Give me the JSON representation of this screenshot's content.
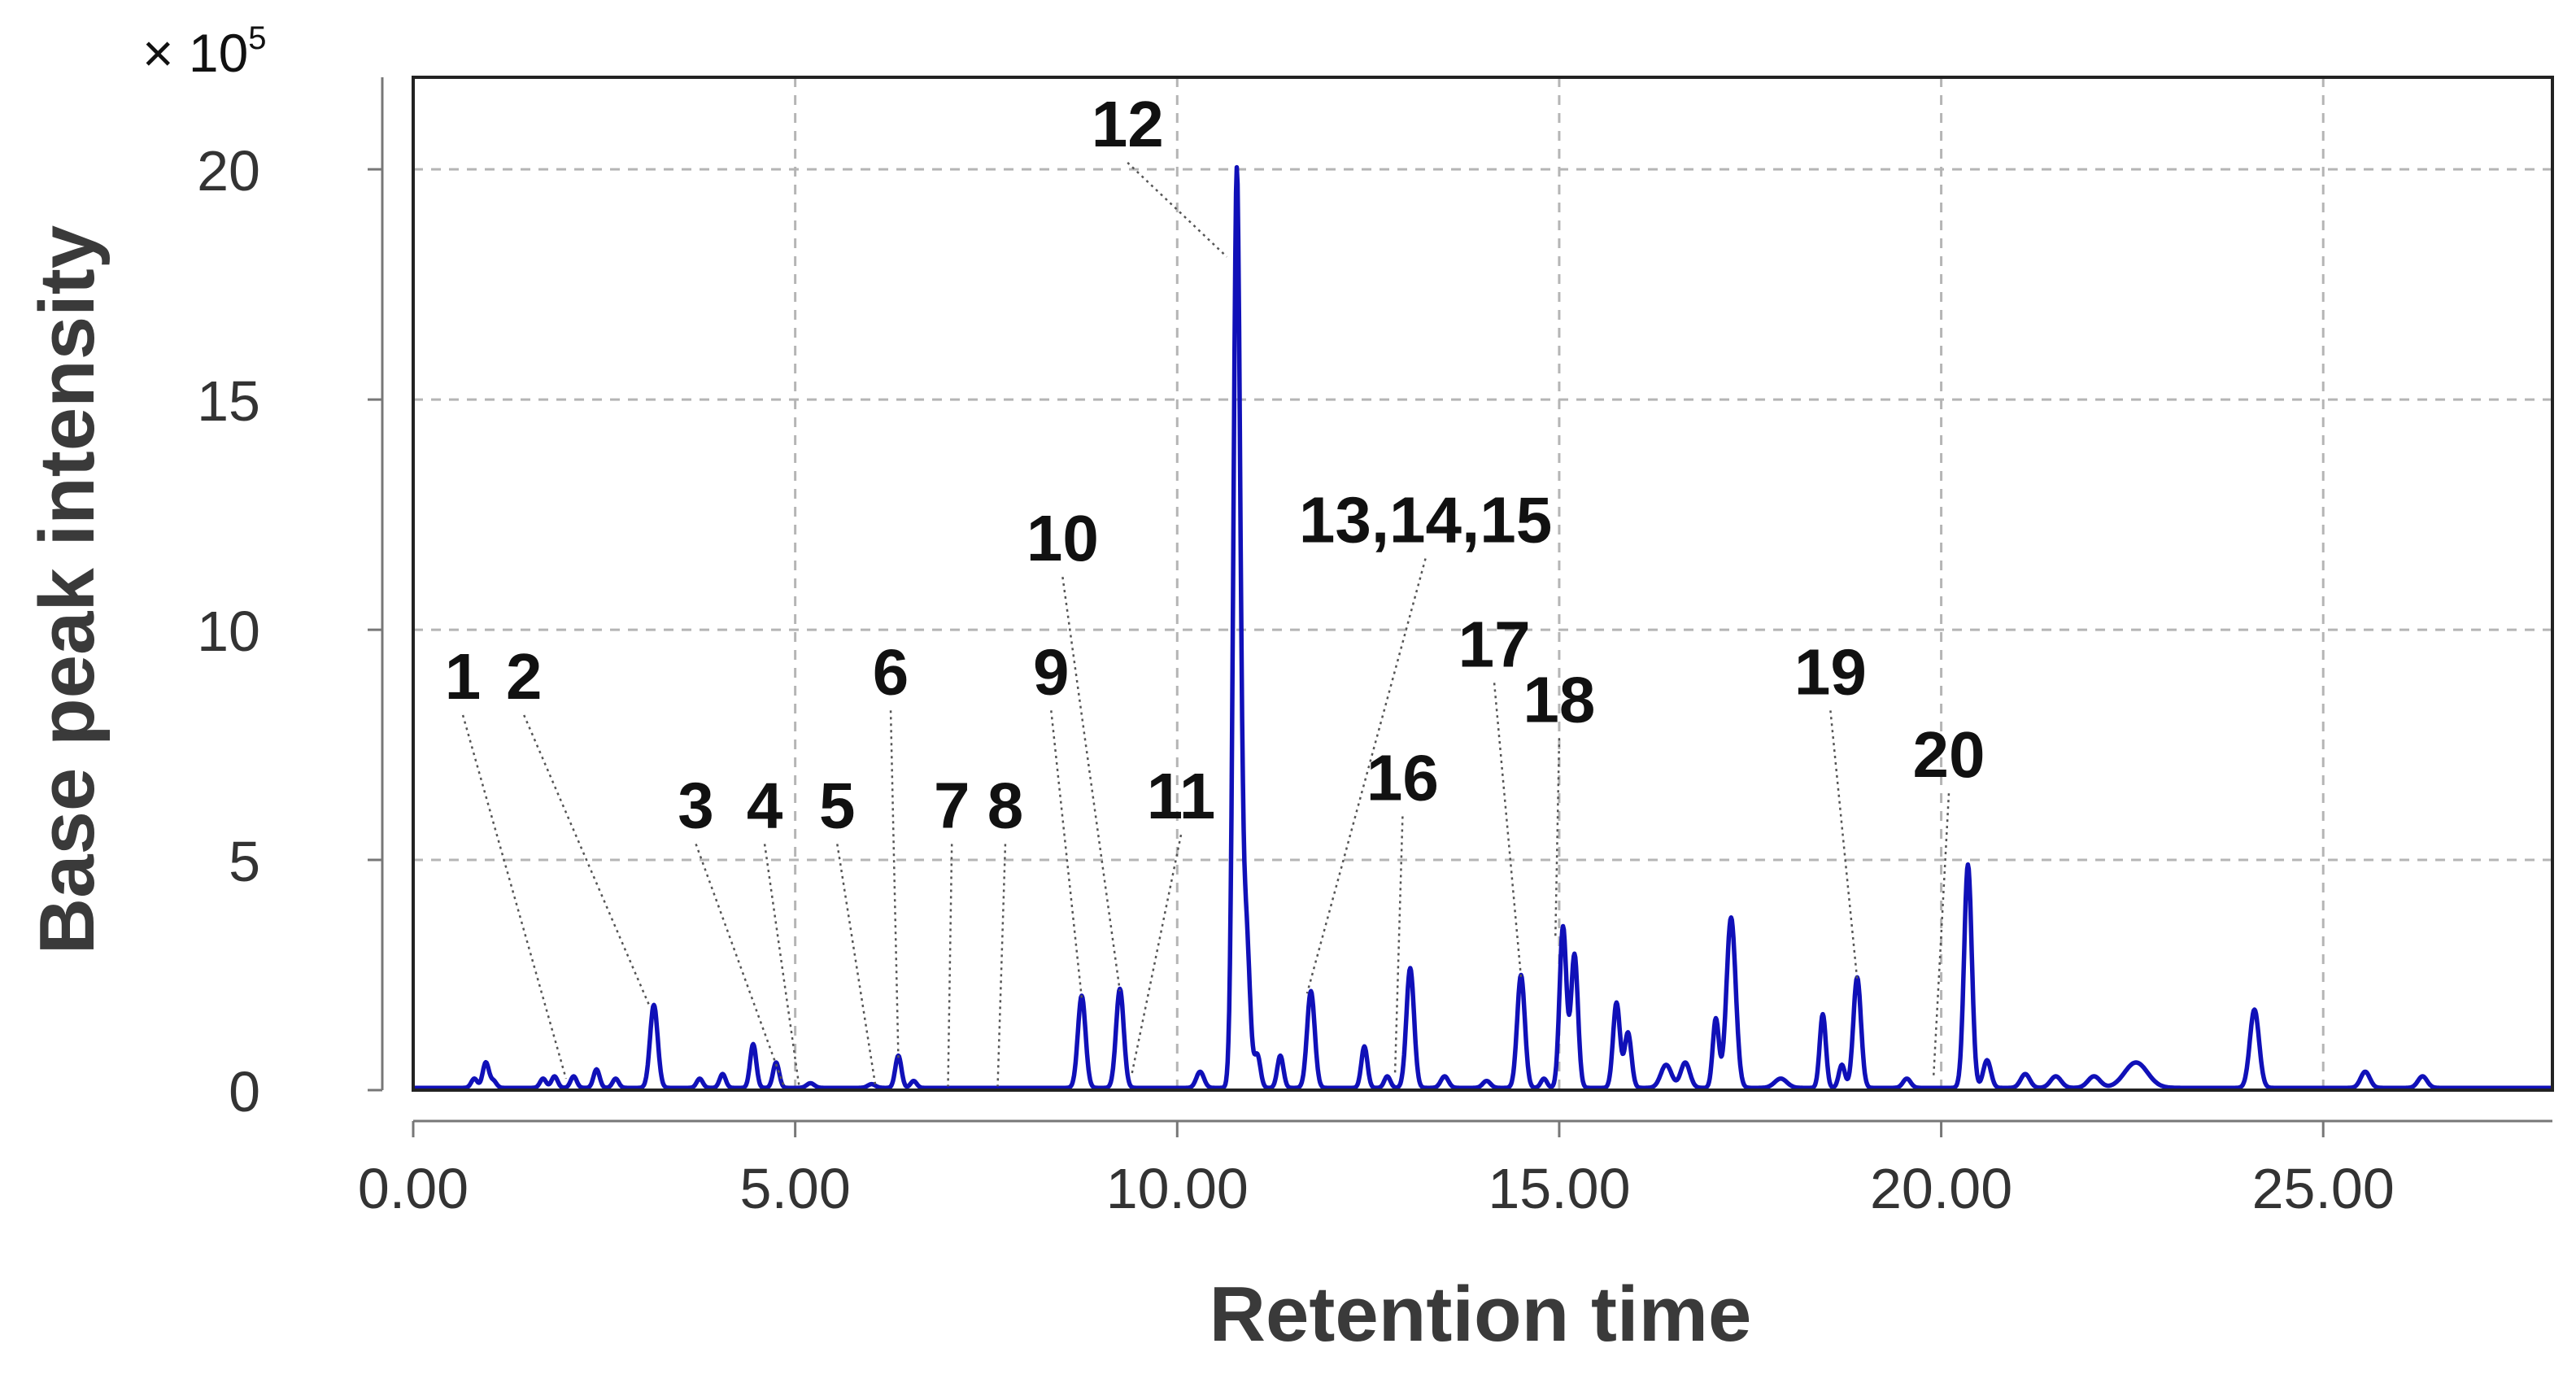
{
  "chart_data": {
    "type": "line",
    "title": "",
    "xlabel": "Retention time",
    "ylabel": "Base peak intensity",
    "y_multiplier_prefix": "× 10",
    "y_multiplier_exponent": "5",
    "xlim": [
      0,
      28
    ],
    "ylim": [
      0,
      22
    ],
    "x_ticks": [
      0,
      5,
      10,
      15,
      20,
      25
    ],
    "x_tick_labels": [
      "0.00",
      "5.00",
      "10.00",
      "15.00",
      "20.00",
      "25.00"
    ],
    "y_ticks": [
      0,
      5,
      10,
      15,
      20
    ],
    "y_tick_labels": [
      "0",
      "5",
      "10",
      "15",
      "20"
    ],
    "grid": true,
    "colors": {
      "trace": "#1010b8",
      "axis": "#222222",
      "grid": "#b5b5b5"
    },
    "series": [
      {
        "peaks": [
          {
            "x": 0.8,
            "y": 0.2,
            "w": 0.04
          },
          {
            "x": 0.95,
            "y": 0.55,
            "w": 0.04
          },
          {
            "x": 1.05,
            "y": 0.15,
            "w": 0.04
          },
          {
            "x": 1.7,
            "y": 0.2,
            "w": 0.04
          },
          {
            "x": 1.85,
            "y": 0.25,
            "w": 0.04
          },
          {
            "x": 2.1,
            "y": 0.25,
            "w": 0.04
          },
          {
            "x": 2.4,
            "y": 0.4,
            "w": 0.04
          },
          {
            "x": 2.65,
            "y": 0.2,
            "w": 0.04
          },
          {
            "x": 3.15,
            "y": 1.8,
            "w": 0.05
          },
          {
            "x": 3.75,
            "y": 0.2,
            "w": 0.04
          },
          {
            "x": 4.05,
            "y": 0.3,
            "w": 0.04
          },
          {
            "x": 4.45,
            "y": 0.95,
            "w": 0.04
          },
          {
            "x": 4.75,
            "y": 0.55,
            "w": 0.04
          },
          {
            "x": 5.2,
            "y": 0.1,
            "w": 0.05
          },
          {
            "x": 6.0,
            "y": 0.08,
            "w": 0.05
          },
          {
            "x": 6.35,
            "y": 0.7,
            "w": 0.04
          },
          {
            "x": 6.55,
            "y": 0.15,
            "w": 0.04
          },
          {
            "x": 8.75,
            "y": 2.0,
            "w": 0.05
          },
          {
            "x": 9.25,
            "y": 2.15,
            "w": 0.05
          },
          {
            "x": 10.3,
            "y": 0.35,
            "w": 0.05
          },
          {
            "x": 10.78,
            "y": 19.8,
            "w": 0.045
          },
          {
            "x": 10.9,
            "y": 3.5,
            "w": 0.05
          },
          {
            "x": 11.05,
            "y": 0.7,
            "w": 0.04
          },
          {
            "x": 11.35,
            "y": 0.7,
            "w": 0.04
          },
          {
            "x": 11.75,
            "y": 2.1,
            "w": 0.05
          },
          {
            "x": 12.45,
            "y": 0.9,
            "w": 0.04
          },
          {
            "x": 12.75,
            "y": 0.25,
            "w": 0.04
          },
          {
            "x": 13.05,
            "y": 2.6,
            "w": 0.05
          },
          {
            "x": 13.5,
            "y": 0.25,
            "w": 0.05
          },
          {
            "x": 14.05,
            "y": 0.15,
            "w": 0.05
          },
          {
            "x": 14.5,
            "y": 2.45,
            "w": 0.05
          },
          {
            "x": 14.8,
            "y": 0.2,
            "w": 0.04
          },
          {
            "x": 15.05,
            "y": 3.5,
            "w": 0.045
          },
          {
            "x": 15.2,
            "y": 2.9,
            "w": 0.045
          },
          {
            "x": 15.75,
            "y": 1.85,
            "w": 0.045
          },
          {
            "x": 15.9,
            "y": 1.2,
            "w": 0.045
          },
          {
            "x": 16.4,
            "y": 0.5,
            "w": 0.07
          },
          {
            "x": 16.65,
            "y": 0.55,
            "w": 0.06
          },
          {
            "x": 17.05,
            "y": 1.5,
            "w": 0.04
          },
          {
            "x": 17.25,
            "y": 3.7,
            "w": 0.06
          },
          {
            "x": 17.9,
            "y": 0.2,
            "w": 0.08
          },
          {
            "x": 18.45,
            "y": 1.6,
            "w": 0.04
          },
          {
            "x": 18.7,
            "y": 0.5,
            "w": 0.04
          },
          {
            "x": 18.9,
            "y": 2.4,
            "w": 0.05
          },
          {
            "x": 19.55,
            "y": 0.2,
            "w": 0.05
          },
          {
            "x": 20.35,
            "y": 4.85,
            "w": 0.05
          },
          {
            "x": 20.6,
            "y": 0.6,
            "w": 0.05
          },
          {
            "x": 21.1,
            "y": 0.3,
            "w": 0.06
          },
          {
            "x": 21.5,
            "y": 0.25,
            "w": 0.07
          },
          {
            "x": 22.0,
            "y": 0.25,
            "w": 0.08
          },
          {
            "x": 22.55,
            "y": 0.55,
            "w": 0.15
          },
          {
            "x": 24.1,
            "y": 1.7,
            "w": 0.06
          },
          {
            "x": 25.55,
            "y": 0.35,
            "w": 0.06
          },
          {
            "x": 26.3,
            "y": 0.25,
            "w": 0.06
          }
        ]
      }
    ],
    "annotations": [
      {
        "text": "1",
        "x": 0.65,
        "y": 8.5,
        "px": 2.0,
        "py": 0.25
      },
      {
        "text": "2",
        "x": 1.45,
        "y": 8.5,
        "px": 3.1,
        "py": 1.8
      },
      {
        "text": "3",
        "x": 3.7,
        "y": 5.7,
        "px": 4.85,
        "py": 0.1
      },
      {
        "text": "4",
        "x": 4.6,
        "y": 5.7,
        "px": 5.05,
        "py": 0.1
      },
      {
        "text": "5",
        "x": 5.55,
        "y": 5.7,
        "px": 6.05,
        "py": 0.1
      },
      {
        "text": "6",
        "x": 6.25,
        "y": 8.6,
        "px": 6.35,
        "py": 0.7
      },
      {
        "text": "7",
        "x": 7.05,
        "y": 5.7,
        "px": 7.0,
        "py": 0.08
      },
      {
        "text": "8",
        "x": 7.75,
        "y": 5.7,
        "px": 7.65,
        "py": 0.08
      },
      {
        "text": "9",
        "x": 8.35,
        "y": 8.6,
        "px": 8.75,
        "py": 2.0
      },
      {
        "text": "10",
        "x": 8.5,
        "y": 11.5,
        "px": 9.25,
        "py": 2.15
      },
      {
        "text": "11",
        "x": 10.05,
        "y": 5.9,
        "px": 9.4,
        "py": 0.3
      },
      {
        "text": "12",
        "x": 9.35,
        "y": 20.5,
        "px": 10.65,
        "py": 18.1
      },
      {
        "text": "13,14,15",
        "x": 13.25,
        "y": 11.9,
        "px": 11.7,
        "py": 2.1
      },
      {
        "text": "16",
        "x": 12.95,
        "y": 6.3,
        "px": 12.85,
        "py": 0.3
      },
      {
        "text": "17",
        "x": 14.15,
        "y": 9.2,
        "px": 14.5,
        "py": 2.45
      },
      {
        "text": "18",
        "x": 15.0,
        "y": 8.0,
        "px": 14.95,
        "py": 3.3
      },
      {
        "text": "19",
        "x": 18.55,
        "y": 8.6,
        "px": 18.9,
        "py": 2.4
      },
      {
        "text": "20",
        "x": 20.1,
        "y": 6.8,
        "px": 19.9,
        "py": 0.3
      }
    ]
  }
}
